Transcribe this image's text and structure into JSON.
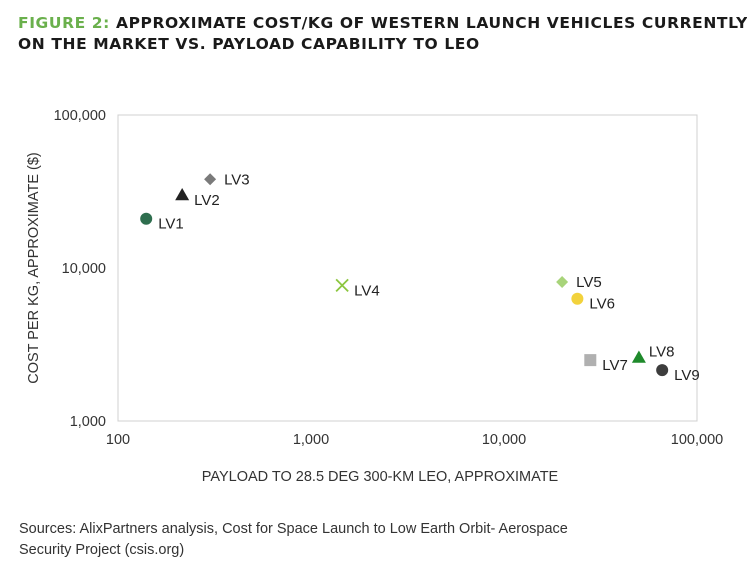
{
  "title": {
    "figure_label": "FIGURE 2:",
    "line1": "APPROXIMATE COST/KG OF WESTERN LAUNCH VEHICLES CURRENTLY",
    "line2": "ON THE MARKET VS. PAYLOAD CAPABILITY TO LEO",
    "accent_color": "#6ab04c"
  },
  "source": {
    "line1": "Sources: AlixPartners analysis, Cost for Space Launch to Low Earth Orbit- Aerospace",
    "line2": "Security Project (csis.org)"
  },
  "chart_data": {
    "type": "scatter",
    "xscale": "log",
    "yscale": "log",
    "xlabel": "PAYLOAD TO 28.5 DEG 300-KM LEO, APPROXIMATE",
    "ylabel": "COST PER KG, APPROXIMATE ($)",
    "xlim": [
      100,
      100000
    ],
    "ylim": [
      1000,
      100000
    ],
    "x_ticks": [
      {
        "value": 100,
        "label": "100"
      },
      {
        "value": 1000,
        "label": "1,000"
      },
      {
        "value": 10000,
        "label": "10,000"
      },
      {
        "value": 100000,
        "label": "100,000"
      }
    ],
    "y_ticks": [
      {
        "value": 1000,
        "label": "1,000"
      },
      {
        "value": 10000,
        "label": "10,000"
      },
      {
        "value": 100000,
        "label": "100,000"
      }
    ],
    "points": [
      {
        "label": "LV1",
        "x": 140,
        "y": 21000,
        "marker": "circle",
        "color": "#2e6e4e",
        "label_pos": "below-right"
      },
      {
        "label": "LV2",
        "x": 215,
        "y": 30000,
        "marker": "triangle",
        "color": "#222222",
        "label_pos": "below-right"
      },
      {
        "label": "LV3",
        "x": 300,
        "y": 38000,
        "marker": "diamond",
        "color": "#7a7a7a",
        "label_pos": "right"
      },
      {
        "label": "LV4",
        "x": 1450,
        "y": 7700,
        "marker": "x",
        "color": "#8cc63f",
        "label_pos": "below-right"
      },
      {
        "label": "LV5",
        "x": 20000,
        "y": 8100,
        "marker": "diamond",
        "color": "#a8d47a",
        "label_pos": "right"
      },
      {
        "label": "LV6",
        "x": 24000,
        "y": 6300,
        "marker": "circle",
        "color": "#f2d23c",
        "label_pos": "below-right"
      },
      {
        "label": "LV7",
        "x": 28000,
        "y": 2500,
        "marker": "square",
        "color": "#b0b0b0",
        "label_pos": "below-right"
      },
      {
        "label": "LV8",
        "x": 50000,
        "y": 2600,
        "marker": "triangle",
        "color": "#1f8a2b",
        "label_pos": "above-right"
      },
      {
        "label": "LV9",
        "x": 66000,
        "y": 2150,
        "marker": "circle",
        "color": "#3d3d3d",
        "label_pos": "below-right"
      }
    ]
  }
}
